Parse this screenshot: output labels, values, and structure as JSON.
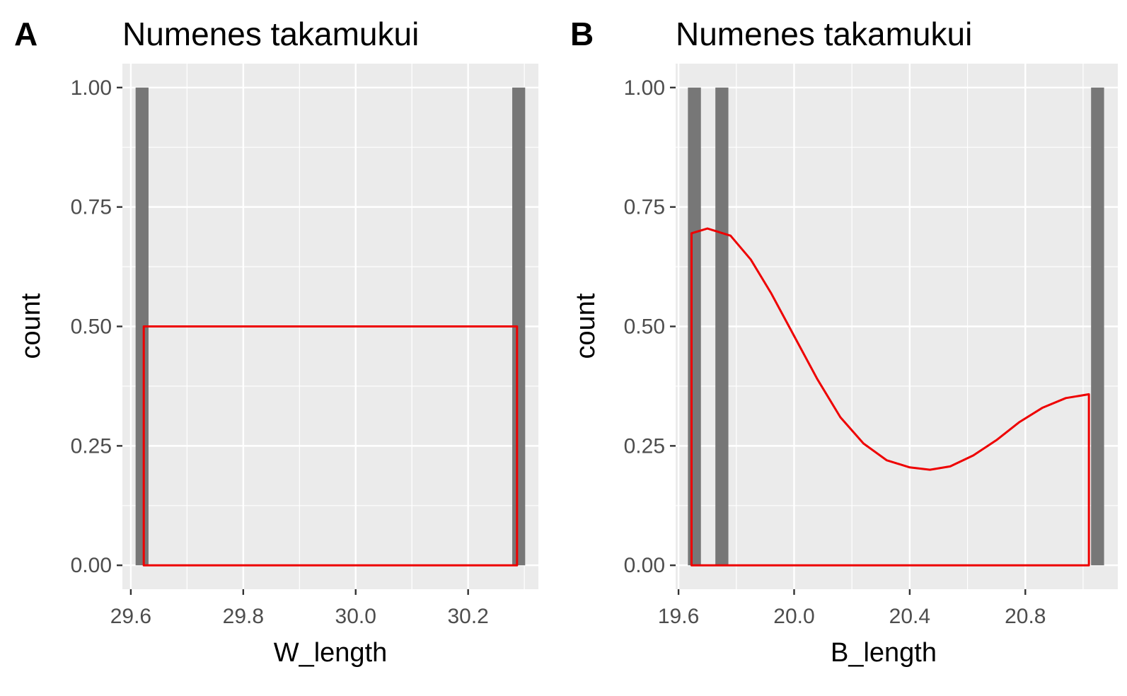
{
  "chart_data": [
    {
      "type": "bar",
      "panel_label": "A",
      "title": "Numenes takamukui",
      "xlabel": "W_length",
      "ylabel": "count",
      "xlim": [
        29.585,
        30.325
      ],
      "ylim": [
        -0.05,
        1.05
      ],
      "xticks": [
        29.6,
        29.8,
        30.0,
        30.2
      ],
      "xtick_labels": [
        "29.6",
        "29.8",
        "30.0",
        "30.2"
      ],
      "yticks": [
        0,
        0.25,
        0.5,
        0.75,
        1.0
      ],
      "ytick_labels": [
        "0.00",
        "0.25",
        "0.50",
        "0.75",
        "1.00"
      ],
      "grid": true,
      "bars": [
        {
          "x": 29.62,
          "count": 1
        },
        {
          "x": 30.29,
          "count": 1
        }
      ],
      "bar_width": 0.023,
      "bar_color": "#777777",
      "density": {
        "color": "#ee0000",
        "points": [
          [
            29.623,
            0
          ],
          [
            29.623,
            0.5
          ],
          [
            30.287,
            0.5
          ],
          [
            30.287,
            0
          ]
        ]
      }
    },
    {
      "type": "bar",
      "panel_label": "B",
      "title": "Numenes takamukui",
      "xlabel": "B_length",
      "ylabel": "count",
      "xlim": [
        19.59,
        21.12
      ],
      "ylim": [
        -0.05,
        1.05
      ],
      "xticks": [
        19.6,
        20.0,
        20.4,
        20.8
      ],
      "xtick_labels": [
        "19.6",
        "20.0",
        "20.4",
        "20.8"
      ],
      "yticks": [
        0,
        0.25,
        0.5,
        0.75,
        1.0
      ],
      "ytick_labels": [
        "0.00",
        "0.25",
        "0.50",
        "0.75",
        "1.00"
      ],
      "grid": true,
      "bars": [
        {
          "x": 19.655,
          "count": 1
        },
        {
          "x": 19.75,
          "count": 1
        },
        {
          "x": 21.05,
          "count": 1
        }
      ],
      "bar_width": 0.045,
      "bar_color": "#777777",
      "density": {
        "color": "#ee0000",
        "points": [
          [
            19.645,
            0
          ],
          [
            19.645,
            0.695
          ],
          [
            19.7,
            0.705
          ],
          [
            19.78,
            0.69
          ],
          [
            19.85,
            0.64
          ],
          [
            19.92,
            0.57
          ],
          [
            20.0,
            0.48
          ],
          [
            20.08,
            0.39
          ],
          [
            20.16,
            0.31
          ],
          [
            20.24,
            0.255
          ],
          [
            20.32,
            0.22
          ],
          [
            20.4,
            0.205
          ],
          [
            20.47,
            0.2
          ],
          [
            20.54,
            0.207
          ],
          [
            20.62,
            0.23
          ],
          [
            20.7,
            0.262
          ],
          [
            20.78,
            0.3
          ],
          [
            20.86,
            0.33
          ],
          [
            20.94,
            0.35
          ],
          [
            21.02,
            0.358
          ],
          [
            21.02,
            0
          ]
        ]
      }
    }
  ]
}
